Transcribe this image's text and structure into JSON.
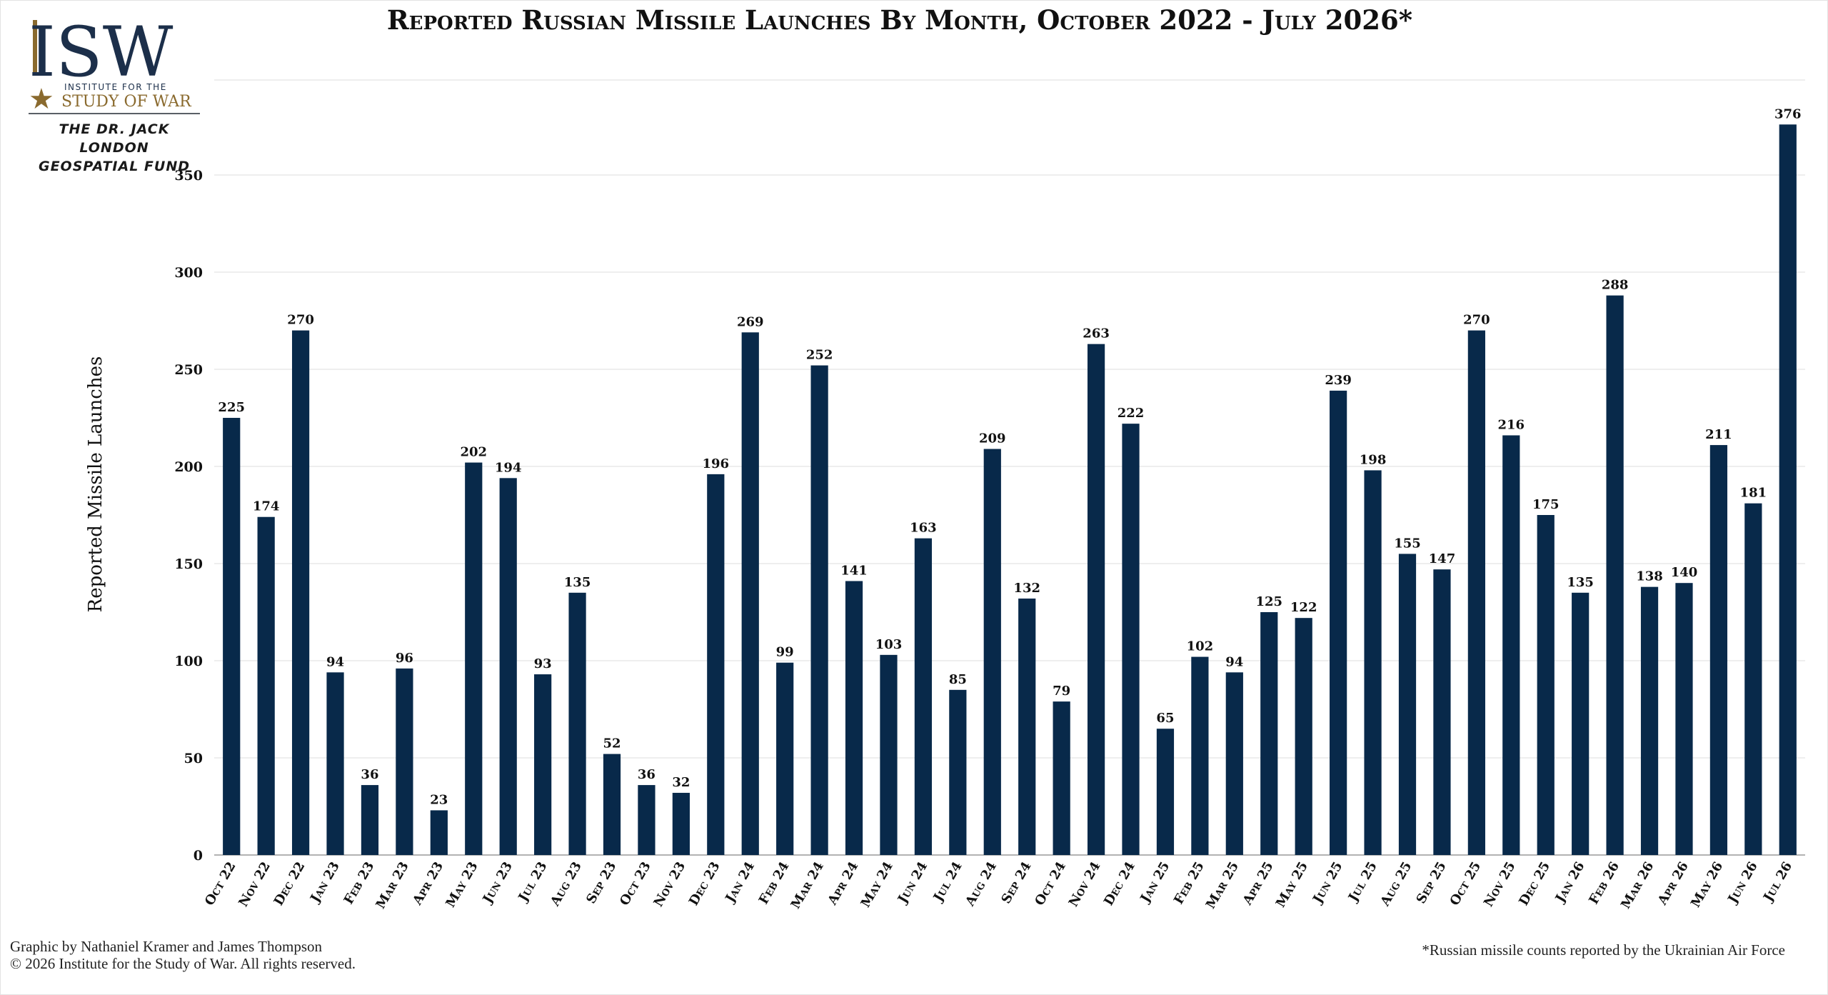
{
  "branding": {
    "logo_letters": "ISW",
    "logo_line1": "INSTITUTE FOR THE",
    "logo_line2": "STUDY OF WAR",
    "fund_line1": "THE DR. JACK LONDON",
    "fund_line2": "GEOSPATIAL FUND"
  },
  "footer": {
    "credit_line1": "Graphic by Nathaniel Kramer and James Thompson",
    "credit_line2": "© 2026 Institute for the Study of War. All rights reserved.",
    "note": "*Russian missile counts reported by the Ukrainian Air Force"
  },
  "colors": {
    "bar": "#08294a",
    "grid": "#dcdcdc",
    "logo_navy": "#1c2f4a",
    "logo_gold": "#8a6a2e"
  },
  "chart_data": {
    "type": "bar",
    "title": "Reported Russian Missile Launches By Month, October 2022 - July 2026*",
    "xlabel": "",
    "ylabel": "Reported Missile Launches",
    "ylim": [
      0,
      380
    ],
    "yticks": [
      0,
      50,
      100,
      150,
      200,
      250,
      300,
      350
    ],
    "grid": true,
    "data_labels": true,
    "categories": [
      "Oct 22",
      "Nov 22",
      "Dec 22",
      "Jan 23",
      "Feb 23",
      "Mar 23",
      "Apr 23",
      "May 23",
      "Jun 23",
      "Jul 23",
      "Aug 23",
      "Sep 23",
      "Oct 23",
      "Nov 23",
      "Dec 23",
      "Jan 24",
      "Feb 24",
      "Mar 24",
      "Apr 24",
      "May 24",
      "Jun 24",
      "Jul 24",
      "Aug 24",
      "Sep 24",
      "Oct 24",
      "Nov 24",
      "Dec 24",
      "Jan 25",
      "Feb 25",
      "Mar 25",
      "Apr 25",
      "May 25",
      "Jun 25",
      "Jul 25",
      "Aug 25",
      "Sep 25",
      "Oct 25",
      "Nov 25",
      "Dec 25",
      "Jan 26",
      "Feb 26",
      "Mar 26",
      "Apr 26",
      "May 26",
      "Jun 26",
      "Jul 26"
    ],
    "values": [
      225,
      174,
      270,
      94,
      36,
      96,
      23,
      202,
      194,
      93,
      135,
      52,
      36,
      32,
      196,
      269,
      99,
      252,
      141,
      103,
      163,
      85,
      209,
      132,
      79,
      263,
      222,
      65,
      102,
      94,
      125,
      122,
      239,
      198,
      155,
      147,
      270,
      216,
      175,
      135,
      288,
      138,
      140,
      211,
      181,
      376
    ]
  }
}
